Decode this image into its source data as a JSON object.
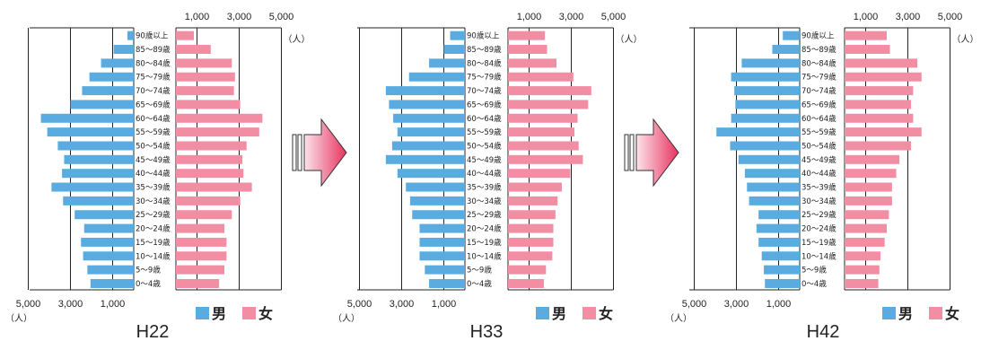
{
  "unit_label": "（人）",
  "legend": {
    "male": "男",
    "female": "女"
  },
  "colors": {
    "male": "#5aace0",
    "female": "#f18ea4",
    "arrow_light": "#fbe3ea",
    "arrow_dark": "#e8335f"
  },
  "chart_data": [
    {
      "type": "bar",
      "title": "H22",
      "categories": [
        "90歳以上",
        "85～89歳",
        "80～84歳",
        "75～79歳",
        "70～74歳",
        "65～69歳",
        "60～64歳",
        "55～59歳",
        "50～54歳",
        "45～49歳",
        "40～44歳",
        "35～39歳",
        "30～34歳",
        "25～29歳",
        "20～24歳",
        "15～19歳",
        "10～14歳",
        "5～9歳",
        "0～4歳"
      ],
      "x_ticks_top": [
        "1,000",
        "3,000",
        "5,000"
      ],
      "x_ticks_bottom": [
        "5,000",
        "3,000",
        "1,000"
      ],
      "xlim": [
        0,
        5000
      ],
      "series": [
        {
          "name": "男",
          "values": [
            300,
            950,
            1550,
            2100,
            2450,
            3000,
            4400,
            4100,
            3600,
            3300,
            3400,
            3900,
            3350,
            2800,
            2350,
            2500,
            2400,
            2200,
            2050
          ]
        },
        {
          "name": "女",
          "values": [
            850,
            1650,
            2650,
            2800,
            2750,
            3050,
            4100,
            3950,
            3350,
            3150,
            3200,
            3600,
            3050,
            2650,
            2300,
            2400,
            2400,
            2300,
            2050
          ]
        }
      ]
    },
    {
      "type": "bar",
      "title": "H33",
      "categories": [
        "90歳以上",
        "85～89歳",
        "80～84歳",
        "75～79歳",
        "70～74歳",
        "65～69歳",
        "60～64歳",
        "55～59歳",
        "50～54歳",
        "45～49歳",
        "40～44歳",
        "35～39歳",
        "30～34歳",
        "25～29歳",
        "20～24歳",
        "15～19歳",
        "10～14歳",
        "5～9歳",
        "0～4歳"
      ],
      "x_ticks_top": [
        "1,000",
        "3,000",
        "5,000"
      ],
      "x_ticks_bottom": [
        "5,000",
        "3,000",
        "1,000"
      ],
      "xlim": [
        0,
        5000
      ],
      "series": [
        {
          "name": "男",
          "values": [
            700,
            1000,
            1700,
            2650,
            3750,
            3600,
            3400,
            3200,
            3450,
            3750,
            3200,
            2800,
            2600,
            2500,
            2150,
            2150,
            2150,
            1900,
            1700
          ]
        },
        {
          "name": "女",
          "values": [
            1750,
            1850,
            2300,
            3100,
            3950,
            3800,
            3300,
            3150,
            3350,
            3550,
            2950,
            2550,
            2350,
            2250,
            2150,
            2150,
            2100,
            1800,
            1700
          ]
        }
      ]
    },
    {
      "type": "bar",
      "title": "H42",
      "categories": [
        "90歳以上",
        "85～89歳",
        "80～84歳",
        "75～79歳",
        "70～74歳",
        "65～69歳",
        "60～64歳",
        "55～59歳",
        "50～54歳",
        "45～49歳",
        "40～44歳",
        "35～39歳",
        "30～34歳",
        "25～29歳",
        "20～24歳",
        "15～19歳",
        "10～14歳",
        "5～9歳",
        "0～4歳"
      ],
      "x_ticks_top": [
        "1,000",
        "3,000",
        "5,000"
      ],
      "x_ticks_bottom": [
        "5,000",
        "3,000",
        "1,000"
      ],
      "xlim": [
        0,
        5000
      ],
      "series": [
        {
          "name": "男",
          "values": [
            800,
            1300,
            2750,
            3250,
            3100,
            3050,
            3250,
            3950,
            3300,
            2900,
            2600,
            2500,
            2400,
            1950,
            2050,
            1950,
            1800,
            1700,
            1650
          ]
        },
        {
          "name": "女",
          "values": [
            2000,
            2150,
            3450,
            3650,
            3250,
            3150,
            3250,
            3650,
            3150,
            2600,
            2450,
            2250,
            2250,
            2100,
            2000,
            1900,
            1700,
            1650,
            1600
          ]
        }
      ]
    }
  ]
}
